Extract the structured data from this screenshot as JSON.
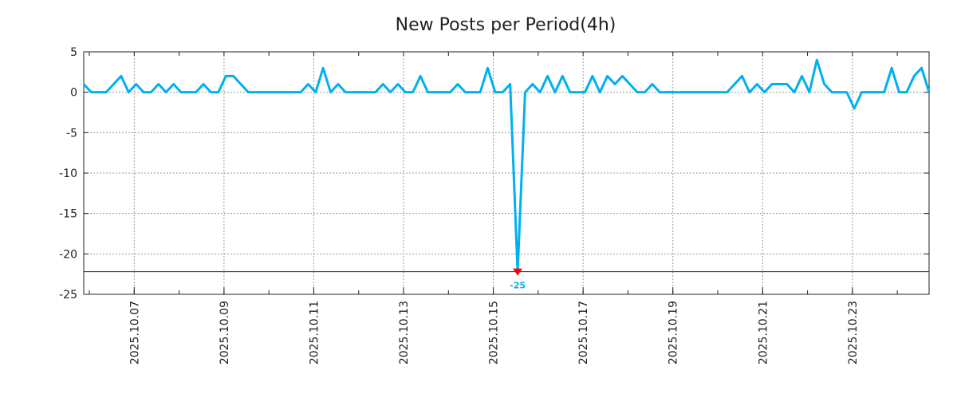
{
  "chart_data": {
    "type": "line",
    "title": "New Posts per Period(4h)",
    "xlabel": "",
    "ylabel": "",
    "ylim": [
      -25,
      5
    ],
    "yticks": [
      5,
      0,
      -5,
      -10,
      -15,
      -20,
      -25
    ],
    "xtick_labels": [
      "2025.10.07",
      "2025.10.09",
      "2025.10.11",
      "2025.10.13",
      "2025.10.15",
      "2025.10.17",
      "2025.10.19",
      "2025.10.21",
      "2025.10.23"
    ],
    "start_time": "2025-10-05T21:00:00",
    "period_hours": 4,
    "grid": true,
    "clip_value": -22.2,
    "min_annotation": "-25",
    "line_color": "#00b0f0",
    "marker_color": "#ff0000",
    "series": [
      {
        "name": "New Posts",
        "values": [
          1,
          0,
          0,
          0,
          1,
          2,
          0,
          1,
          0,
          0,
          1,
          0,
          1,
          0,
          0,
          0,
          1,
          0,
          0,
          2,
          2,
          1,
          0,
          0,
          0,
          0,
          0,
          0,
          0,
          0,
          1,
          0,
          3,
          0,
          1,
          0,
          0,
          0,
          0,
          0,
          1,
          0,
          1,
          0,
          0,
          2,
          0,
          0,
          0,
          0,
          1,
          0,
          0,
          0,
          3,
          0,
          0,
          1,
          -25,
          0,
          1,
          0,
          2,
          0,
          2,
          0,
          0,
          0,
          2,
          0,
          2,
          1,
          2,
          1,
          0,
          0,
          1,
          0,
          0,
          0,
          0,
          0,
          0,
          0,
          0,
          0,
          0,
          1,
          2,
          0,
          1,
          0,
          1,
          1,
          1,
          0,
          2,
          0,
          4,
          1,
          0,
          0,
          0,
          -2,
          0,
          0,
          0,
          0,
          3,
          0,
          0,
          2,
          3,
          0
        ]
      }
    ]
  }
}
